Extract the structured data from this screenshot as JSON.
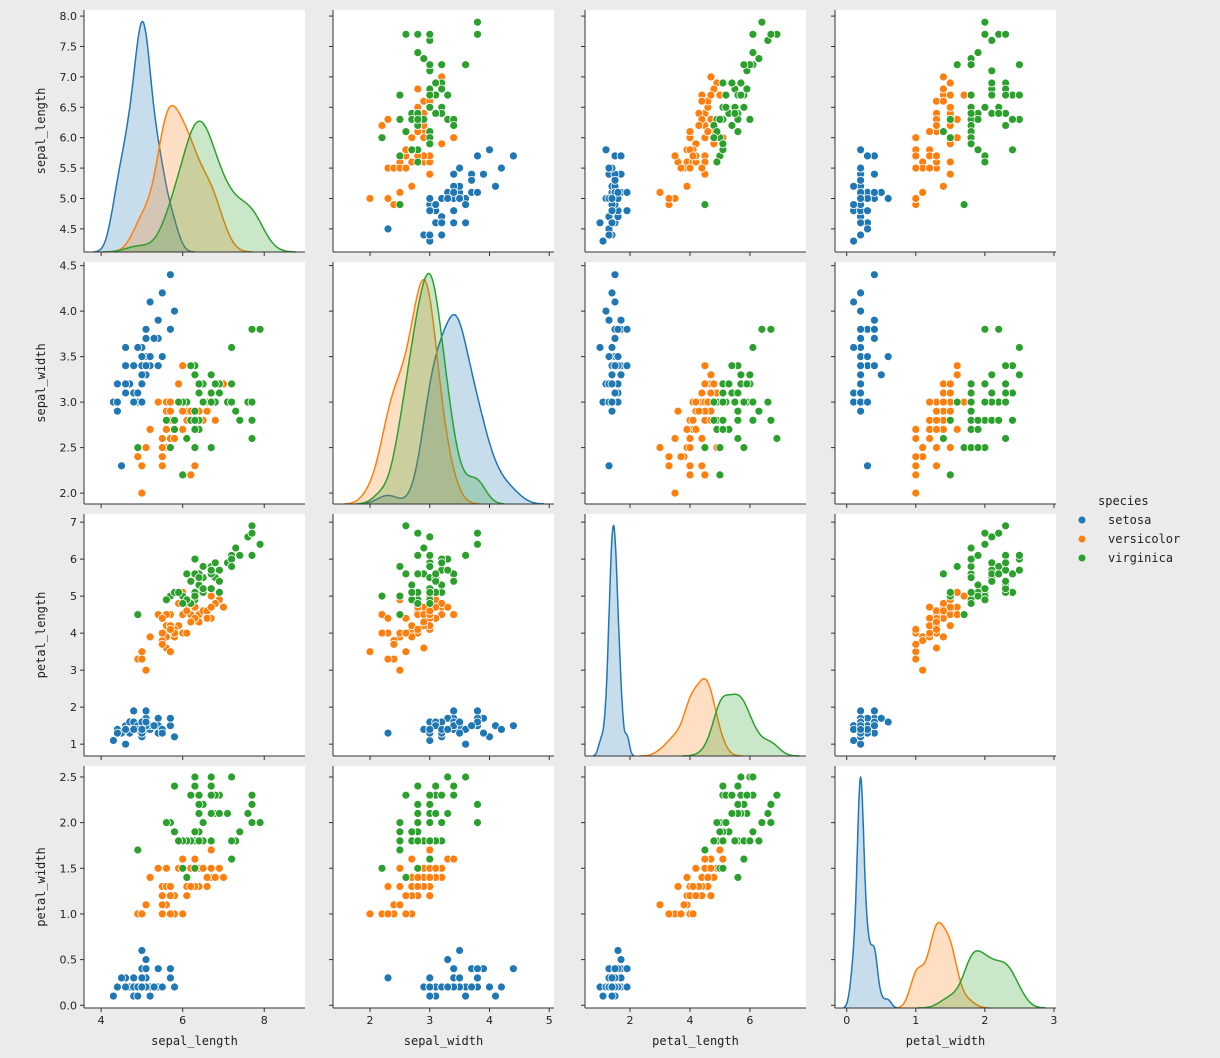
{
  "chart_data": {
    "type": "scatter",
    "kind": "pairplot",
    "variables": [
      "sepal_length",
      "sepal_width",
      "petal_length",
      "petal_width"
    ],
    "diagonal": "kde",
    "hue": "species",
    "legend": {
      "title": "species",
      "placement": "right",
      "entries": [
        "setosa",
        "versicolor",
        "virginica"
      ]
    },
    "colors": {
      "setosa": "#1f77b4",
      "versicolor": "#ff7f0e",
      "virginica": "#2ca02c"
    },
    "background": "#ebebeb",
    "axes": {
      "sepal_length": {
        "lim_x": [
          3.58,
          9.0
        ],
        "lim_y": [
          4.12,
          8.1
        ],
        "ticks_x": [
          4,
          6,
          8
        ],
        "ticks_y": [
          "4.5",
          "5.0",
          "5.5",
          "6.0",
          "6.5",
          "7.0",
          "7.5",
          "8.0"
        ]
      },
      "sepal_width": {
        "lim_x": [
          1.38,
          5.08
        ],
        "lim_y": [
          1.88,
          4.54
        ],
        "ticks_x": [
          2,
          3,
          4,
          5
        ],
        "ticks_y": [
          "2.0",
          "2.5",
          "3.0",
          "3.5",
          "4.0",
          "4.5"
        ]
      },
      "petal_length": {
        "lim_x": [
          0.5,
          7.87
        ],
        "lim_y": [
          0.68,
          7.22
        ],
        "ticks_x": [
          2,
          4,
          6
        ],
        "ticks_y": [
          "1",
          "2",
          "3",
          "4",
          "5",
          "6",
          "7"
        ]
      },
      "petal_width": {
        "lim_x": [
          -0.17,
          3.03
        ],
        "lim_y": [
          -0.03,
          2.62
        ],
        "ticks_x": [
          0,
          1,
          2,
          3
        ],
        "ticks_y": [
          "0.0",
          "0.5",
          "1.0",
          "1.5",
          "2.0",
          "2.5"
        ]
      }
    },
    "data": {
      "setosa": [
        [
          5.1,
          3.5,
          1.4,
          0.2
        ],
        [
          4.9,
          3.0,
          1.4,
          0.2
        ],
        [
          4.7,
          3.2,
          1.3,
          0.2
        ],
        [
          4.6,
          3.1,
          1.5,
          0.2
        ],
        [
          5.0,
          3.6,
          1.4,
          0.2
        ],
        [
          5.4,
          3.9,
          1.7,
          0.4
        ],
        [
          4.6,
          3.4,
          1.4,
          0.3
        ],
        [
          5.0,
          3.4,
          1.5,
          0.2
        ],
        [
          4.4,
          2.9,
          1.4,
          0.2
        ],
        [
          4.9,
          3.1,
          1.5,
          0.1
        ],
        [
          5.4,
          3.7,
          1.5,
          0.2
        ],
        [
          4.8,
          3.4,
          1.6,
          0.2
        ],
        [
          4.8,
          3.0,
          1.4,
          0.1
        ],
        [
          4.3,
          3.0,
          1.1,
          0.1
        ],
        [
          5.8,
          4.0,
          1.2,
          0.2
        ],
        [
          5.7,
          4.4,
          1.5,
          0.4
        ],
        [
          5.4,
          3.9,
          1.3,
          0.4
        ],
        [
          5.1,
          3.5,
          1.4,
          0.3
        ],
        [
          5.7,
          3.8,
          1.7,
          0.3
        ],
        [
          5.1,
          3.8,
          1.5,
          0.3
        ],
        [
          5.4,
          3.4,
          1.7,
          0.2
        ],
        [
          5.1,
          3.7,
          1.5,
          0.4
        ],
        [
          4.6,
          3.6,
          1.0,
          0.2
        ],
        [
          5.1,
          3.3,
          1.7,
          0.5
        ],
        [
          4.8,
          3.4,
          1.9,
          0.2
        ],
        [
          5.0,
          3.0,
          1.6,
          0.2
        ],
        [
          5.0,
          3.4,
          1.6,
          0.4
        ],
        [
          5.2,
          3.5,
          1.5,
          0.2
        ],
        [
          5.2,
          3.4,
          1.4,
          0.2
        ],
        [
          4.7,
          3.2,
          1.6,
          0.2
        ],
        [
          4.8,
          3.1,
          1.6,
          0.2
        ],
        [
          5.4,
          3.4,
          1.5,
          0.4
        ],
        [
          5.2,
          4.1,
          1.5,
          0.1
        ],
        [
          5.5,
          4.2,
          1.4,
          0.2
        ],
        [
          4.9,
          3.1,
          1.5,
          0.2
        ],
        [
          5.0,
          3.2,
          1.2,
          0.2
        ],
        [
          5.5,
          3.5,
          1.3,
          0.2
        ],
        [
          4.9,
          3.6,
          1.4,
          0.1
        ],
        [
          4.4,
          3.0,
          1.3,
          0.2
        ],
        [
          5.1,
          3.4,
          1.5,
          0.2
        ],
        [
          5.0,
          3.5,
          1.3,
          0.3
        ],
        [
          4.5,
          2.3,
          1.3,
          0.3
        ],
        [
          4.4,
          3.2,
          1.3,
          0.2
        ],
        [
          5.0,
          3.5,
          1.6,
          0.6
        ],
        [
          5.1,
          3.8,
          1.9,
          0.4
        ],
        [
          4.8,
          3.0,
          1.4,
          0.3
        ],
        [
          5.1,
          3.8,
          1.6,
          0.2
        ],
        [
          4.6,
          3.2,
          1.4,
          0.2
        ],
        [
          5.3,
          3.7,
          1.5,
          0.2
        ],
        [
          5.0,
          3.3,
          1.4,
          0.2
        ]
      ],
      "versicolor": [
        [
          7.0,
          3.2,
          4.7,
          1.4
        ],
        [
          6.4,
          3.2,
          4.5,
          1.5
        ],
        [
          6.9,
          3.1,
          4.9,
          1.5
        ],
        [
          5.5,
          2.3,
          4.0,
          1.3
        ],
        [
          6.5,
          2.8,
          4.6,
          1.5
        ],
        [
          5.7,
          2.8,
          4.5,
          1.3
        ],
        [
          6.3,
          3.3,
          4.7,
          1.6
        ],
        [
          4.9,
          2.4,
          3.3,
          1.0
        ],
        [
          6.6,
          2.9,
          4.6,
          1.3
        ],
        [
          5.2,
          2.7,
          3.9,
          1.4
        ],
        [
          5.0,
          2.0,
          3.5,
          1.0
        ],
        [
          5.9,
          3.0,
          4.2,
          1.5
        ],
        [
          6.0,
          2.2,
          4.0,
          1.0
        ],
        [
          6.1,
          2.9,
          4.7,
          1.4
        ],
        [
          5.6,
          2.9,
          3.6,
          1.3
        ],
        [
          6.7,
          3.1,
          4.4,
          1.4
        ],
        [
          5.6,
          3.0,
          4.5,
          1.5
        ],
        [
          5.8,
          2.7,
          4.1,
          1.0
        ],
        [
          6.2,
          2.2,
          4.5,
          1.5
        ],
        [
          5.6,
          2.5,
          3.9,
          1.1
        ],
        [
          5.9,
          3.2,
          4.8,
          1.8
        ],
        [
          6.1,
          2.8,
          4.0,
          1.3
        ],
        [
          6.3,
          2.5,
          4.9,
          1.5
        ],
        [
          6.1,
          2.8,
          4.7,
          1.2
        ],
        [
          6.4,
          2.9,
          4.3,
          1.3
        ],
        [
          6.6,
          3.0,
          4.4,
          1.4
        ],
        [
          6.8,
          2.8,
          4.8,
          1.4
        ],
        [
          6.7,
          3.0,
          5.0,
          1.7
        ],
        [
          6.0,
          2.9,
          4.5,
          1.5
        ],
        [
          5.7,
          2.6,
          3.5,
          1.0
        ],
        [
          5.5,
          2.4,
          3.8,
          1.1
        ],
        [
          5.5,
          2.4,
          3.7,
          1.0
        ],
        [
          5.8,
          2.7,
          3.9,
          1.2
        ],
        [
          6.0,
          2.7,
          5.1,
          1.6
        ],
        [
          5.4,
          3.0,
          4.5,
          1.5
        ],
        [
          6.0,
          3.4,
          4.5,
          1.6
        ],
        [
          6.7,
          3.1,
          4.7,
          1.5
        ],
        [
          6.3,
          2.3,
          4.4,
          1.3
        ],
        [
          5.6,
          3.0,
          4.1,
          1.3
        ],
        [
          5.5,
          2.5,
          4.0,
          1.3
        ],
        [
          5.5,
          2.6,
          4.4,
          1.2
        ],
        [
          6.1,
          3.0,
          4.6,
          1.4
        ],
        [
          5.8,
          2.6,
          4.0,
          1.2
        ],
        [
          5.0,
          2.3,
          3.3,
          1.0
        ],
        [
          5.6,
          2.7,
          4.2,
          1.3
        ],
        [
          5.7,
          3.0,
          4.2,
          1.2
        ],
        [
          5.7,
          2.9,
          4.2,
          1.3
        ],
        [
          6.2,
          2.9,
          4.3,
          1.3
        ],
        [
          5.1,
          2.5,
          3.0,
          1.1
        ],
        [
          5.7,
          2.8,
          4.1,
          1.3
        ]
      ],
      "virginica": [
        [
          6.3,
          3.3,
          6.0,
          2.5
        ],
        [
          5.8,
          2.7,
          5.1,
          1.9
        ],
        [
          7.1,
          3.0,
          5.9,
          2.1
        ],
        [
          6.3,
          2.9,
          5.6,
          1.8
        ],
        [
          6.5,
          3.0,
          5.8,
          2.2
        ],
        [
          7.6,
          3.0,
          6.6,
          2.1
        ],
        [
          4.9,
          2.5,
          4.5,
          1.7
        ],
        [
          7.3,
          2.9,
          6.3,
          1.8
        ],
        [
          6.7,
          2.5,
          5.8,
          1.8
        ],
        [
          7.2,
          3.6,
          6.1,
          2.5
        ],
        [
          6.5,
          3.2,
          5.1,
          2.0
        ],
        [
          6.4,
          2.7,
          5.3,
          1.9
        ],
        [
          6.8,
          3.0,
          5.5,
          2.1
        ],
        [
          5.7,
          2.5,
          5.0,
          2.0
        ],
        [
          5.8,
          2.8,
          5.1,
          2.4
        ],
        [
          6.4,
          3.2,
          5.3,
          2.3
        ],
        [
          6.5,
          3.0,
          5.5,
          1.8
        ],
        [
          7.7,
          3.8,
          6.7,
          2.2
        ],
        [
          7.7,
          2.6,
          6.9,
          2.3
        ],
        [
          6.0,
          2.2,
          5.0,
          1.5
        ],
        [
          6.9,
          3.2,
          5.7,
          2.3
        ],
        [
          5.6,
          2.8,
          4.9,
          2.0
        ],
        [
          7.7,
          2.8,
          6.7,
          2.0
        ],
        [
          6.3,
          2.7,
          4.9,
          1.8
        ],
        [
          6.7,
          3.3,
          5.7,
          2.1
        ],
        [
          7.2,
          3.2,
          6.0,
          1.8
        ],
        [
          6.2,
          2.8,
          4.8,
          1.8
        ],
        [
          6.1,
          3.0,
          4.9,
          1.8
        ],
        [
          6.4,
          2.8,
          5.6,
          2.1
        ],
        [
          7.2,
          3.0,
          5.8,
          1.6
        ],
        [
          7.4,
          2.8,
          6.1,
          1.9
        ],
        [
          7.9,
          3.8,
          6.4,
          2.0
        ],
        [
          6.4,
          2.8,
          5.6,
          2.2
        ],
        [
          6.3,
          2.8,
          5.1,
          1.5
        ],
        [
          6.1,
          2.6,
          5.6,
          1.4
        ],
        [
          7.7,
          3.0,
          6.1,
          2.3
        ],
        [
          6.3,
          3.4,
          5.6,
          2.4
        ],
        [
          6.4,
          3.1,
          5.5,
          1.8
        ],
        [
          6.0,
          3.0,
          4.8,
          1.8
        ],
        [
          6.9,
          3.1,
          5.4,
          2.1
        ],
        [
          6.7,
          3.1,
          5.6,
          2.4
        ],
        [
          6.9,
          3.1,
          5.1,
          2.3
        ],
        [
          5.8,
          2.7,
          5.1,
          1.9
        ],
        [
          6.8,
          3.2,
          5.9,
          2.3
        ],
        [
          6.7,
          3.3,
          5.7,
          2.5
        ],
        [
          6.7,
          3.0,
          5.2,
          2.3
        ],
        [
          6.3,
          2.5,
          5.0,
          1.9
        ],
        [
          6.5,
          3.0,
          5.2,
          2.0
        ],
        [
          6.2,
          3.4,
          5.4,
          2.3
        ],
        [
          5.9,
          3.0,
          5.1,
          1.8
        ]
      ]
    }
  }
}
